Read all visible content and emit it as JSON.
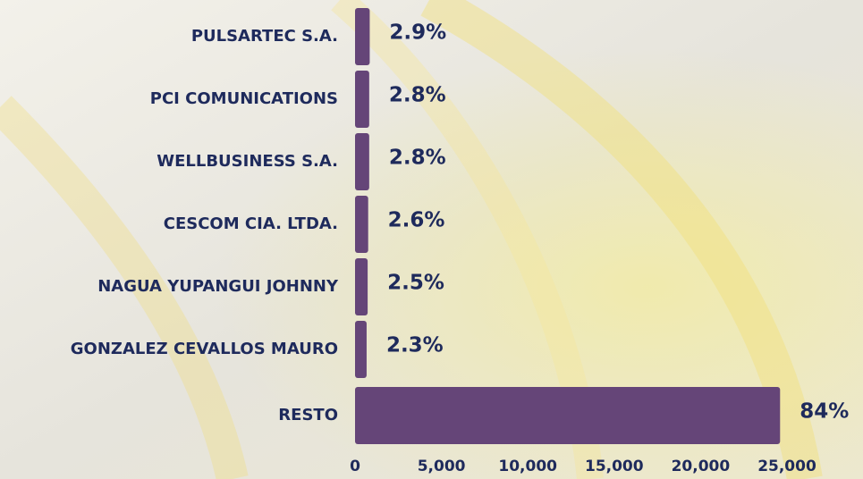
{
  "chart_data": {
    "type": "barh",
    "categories": [
      "PULSARTEC S.A.",
      "PCI COMUNICATIONS",
      "WELLBUSINESS S.A.",
      "CESCOM CIA. LTDA.",
      "NAGUA YUPANGUI JOHNNY",
      "GONZALEZ CEVALLOS MAURO",
      "RESTO"
    ],
    "values": [
      850,
      820,
      820,
      760,
      730,
      670,
      24600
    ],
    "share_labels": [
      "2.9%",
      "2.8%",
      "2.8%",
      "2.6%",
      "2.5%",
      "2.3%",
      "84%"
    ],
    "color": "#654578",
    "xlim": [
      0,
      25000
    ],
    "xticks": [
      0,
      {
        "value": 5000,
        "label": "5,000"
      },
      {
        "value": 10000,
        "label": "10,000"
      },
      {
        "value": 15000,
        "label": "15,000"
      },
      {
        "value": 20000,
        "label": "20,000"
      },
      {
        "value": 25000,
        "label": "25,000"
      }
    ],
    "grid": false
  }
}
